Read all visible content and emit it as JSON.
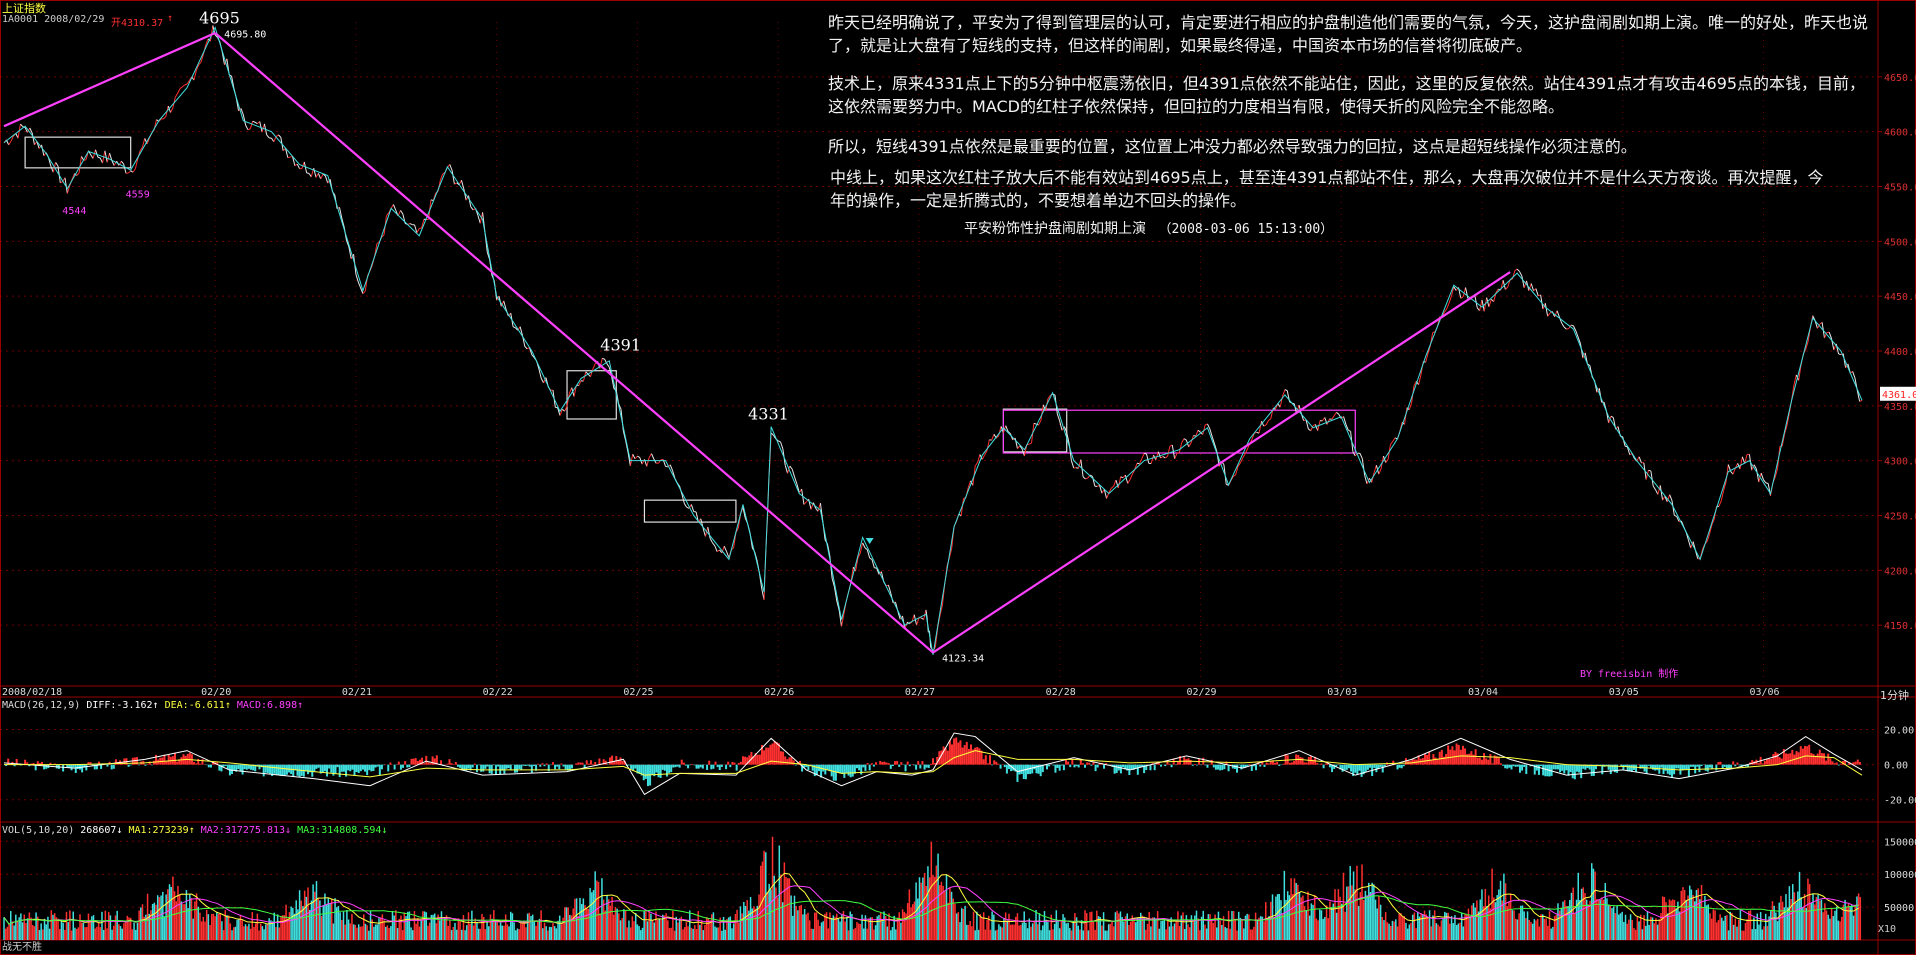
{
  "header": {
    "index_name": "上证指数",
    "code_date": "1A0001 2008/02/29",
    "open_value": "开4310.37",
    "open_arrow": "↑"
  },
  "commentary": {
    "p1": "昨天已经明确说了，平安为了得到管理层的认可，肯定要进行相应的护盘制造他们需要的气氛，今天，这护盘闹剧如期上演。唯一的好处，昨天也说了，就是让大盘有了短线的支持，但这样的闹剧，如果最终得逞，中国资本市场的信誉将彻底破产。",
    "p2": "技术上，原来4331点上下的5分钟中枢震荡依旧，但4391点依然不能站住，因此，这里的反复依然。站住4391点才有攻击4695点的本钱，目前，这依然需要努力中。MACD的红柱子依然保持，但回拉的力度相当有限，使得夭折的风险完全不能忽略。",
    "p3": "所以，短线4391点依然是最重要的位置，这位置上冲没力都必然导致强力的回拉，这点是超短线操作必须注意的。",
    "p4": "中线上，如果这次红柱子放大后不能有效站到4695点上，甚至连4391点都站不住，那么，大盘再次破位并不是什么天方夜谈。再次提醒，今年的操作，一定是折腾式的，不要想着单边不回头的操作。",
    "title": "平安粉饰性护盘闹剧如期上演",
    "timestamp": "（2008-03-06 15:13:00）"
  },
  "watermark": "BY freeisbin 制作",
  "footer": {
    "left": "战无不胜",
    "right": "X10"
  },
  "period": "1分钟",
  "colors": {
    "up": "#ff3030",
    "down": "#40e0e0",
    "magenta": "#ff40ff",
    "yellow": "#ffff40",
    "grid": "#6e0000",
    "axis": "#9a0000",
    "green": "#40ff40"
  },
  "chart_data": [
    {
      "type": "line",
      "name": "price",
      "ylim": [
        4100,
        4700
      ],
      "yticks": [
        4150,
        4200,
        4250,
        4300,
        4350,
        4400,
        4450,
        4500,
        4550,
        4600,
        4650
      ],
      "ytick_labels": [
        "4150.00",
        "4200.00",
        "4250.00",
        "4300.00",
        "4350.00",
        "4400.00",
        "4450.00",
        "4500.00",
        "4550.00",
        "4600.00",
        "4650.00"
      ],
      "xlim": [
        0,
        13.2
      ],
      "date_labels": [
        {
          "x": 0.0,
          "label": "2008/02/18"
        },
        {
          "x": 1.5,
          "label": "02/20"
        },
        {
          "x": 2.5,
          "label": "02/21"
        },
        {
          "x": 3.5,
          "label": "02/22"
        },
        {
          "x": 4.5,
          "label": "02/25"
        },
        {
          "x": 5.5,
          "label": "02/26"
        },
        {
          "x": 6.5,
          "label": "02/27"
        },
        {
          "x": 7.5,
          "label": "02/28"
        },
        {
          "x": 8.5,
          "label": "02/29"
        },
        {
          "x": 9.5,
          "label": "03/03"
        },
        {
          "x": 10.5,
          "label": "03/04"
        },
        {
          "x": 11.5,
          "label": "03/05"
        },
        {
          "x": 12.5,
          "label": "03/06"
        }
      ],
      "series": [
        {
          "points": [
            [
              0,
              4590
            ],
            [
              0.15,
              4605
            ],
            [
              0.3,
              4580
            ],
            [
              0.45,
              4548
            ],
            [
              0.6,
              4582
            ],
            [
              0.75,
              4575
            ],
            [
              0.9,
              4565
            ],
            [
              1.1,
              4610
            ],
            [
              1.3,
              4640
            ],
            [
              1.5,
              4695
            ],
            [
              1.7,
              4610
            ],
            [
              1.9,
              4600
            ],
            [
              2.1,
              4570
            ],
            [
              2.3,
              4560
            ],
            [
              2.55,
              4455
            ],
            [
              2.75,
              4530
            ],
            [
              2.95,
              4505
            ],
            [
              3.15,
              4568
            ],
            [
              3.4,
              4520
            ],
            [
              3.5,
              4450
            ],
            [
              3.75,
              4400
            ],
            [
              3.95,
              4345
            ],
            [
              4.1,
              4375
            ],
            [
              4.3,
              4391
            ],
            [
              4.45,
              4300
            ],
            [
              4.7,
              4300
            ],
            [
              4.9,
              4250
            ],
            [
              5.15,
              4210
            ],
            [
              5.25,
              4260
            ],
            [
              5.4,
              4180
            ],
            [
              5.45,
              4331
            ],
            [
              5.65,
              4270
            ],
            [
              5.8,
              4255
            ],
            [
              5.95,
              4155
            ],
            [
              6.1,
              4230
            ],
            [
              6.25,
              4190
            ],
            [
              6.4,
              4150
            ],
            [
              6.55,
              4160
            ],
            [
              6.6,
              4123
            ],
            [
              6.75,
              4240
            ],
            [
              6.95,
              4305
            ],
            [
              7.1,
              4330
            ],
            [
              7.25,
              4310
            ],
            [
              7.45,
              4362
            ],
            [
              7.6,
              4300
            ],
            [
              7.85,
              4270
            ],
            [
              8.1,
              4300
            ],
            [
              8.35,
              4310
            ],
            [
              8.55,
              4330
            ],
            [
              8.7,
              4278
            ],
            [
              8.85,
              4320
            ],
            [
              9.1,
              4360
            ],
            [
              9.3,
              4330
            ],
            [
              9.5,
              4340
            ],
            [
              9.7,
              4280
            ],
            [
              9.9,
              4320
            ],
            [
              10.1,
              4395
            ],
            [
              10.3,
              4460
            ],
            [
              10.5,
              4440
            ],
            [
              10.75,
              4471
            ],
            [
              10.95,
              4440
            ],
            [
              11.15,
              4420
            ],
            [
              11.4,
              4340
            ],
            [
              11.6,
              4300
            ],
            [
              11.85,
              4260
            ],
            [
              12.05,
              4210
            ],
            [
              12.25,
              4290
            ],
            [
              12.4,
              4300
            ],
            [
              12.55,
              4270
            ],
            [
              12.7,
              4355
            ],
            [
              12.85,
              4430
            ],
            [
              13.05,
              4400
            ],
            [
              13.2,
              4355
            ]
          ]
        }
      ],
      "trend_lines": [
        {
          "from": [
            0,
            4605
          ],
          "to": [
            1.5,
            4690
          ]
        },
        {
          "from": [
            1.5,
            4690
          ],
          "to": [
            6.6,
            4125
          ]
        },
        {
          "from": [
            6.6,
            4125
          ],
          "to": [
            10.7,
            4472
          ]
        }
      ],
      "boxes": [
        {
          "x0": 0.15,
          "x1": 0.9,
          "y0": 4567,
          "y1": 4595,
          "color": "white"
        },
        {
          "x0": 4.0,
          "x1": 4.35,
          "y0": 4338,
          "y1": 4382,
          "color": "white"
        },
        {
          "x0": 4.55,
          "x1": 5.2,
          "y0": 4244,
          "y1": 4264,
          "color": "white"
        },
        {
          "x0": 7.1,
          "x1": 7.55,
          "y0": 4308,
          "y1": 4347,
          "color": "white"
        },
        {
          "x0": 7.1,
          "x1": 9.6,
          "y0": 4307,
          "y1": 4346,
          "color": "magenta"
        }
      ],
      "annotations": [
        {
          "text": "4695",
          "x": 1.5,
          "y": 4695,
          "color": "white",
          "big": true
        },
        {
          "text": "4695.80",
          "x": 1.55,
          "y": 4686,
          "color": "white",
          "big": false
        },
        {
          "text": "4544",
          "x": 0.4,
          "y": 4525,
          "color": "magenta",
          "big": false
        },
        {
          "text": "4559",
          "x": 0.85,
          "y": 4540,
          "color": "magenta",
          "big": false
        },
        {
          "text": "4391",
          "x": 4.35,
          "y": 4397,
          "color": "white",
          "big": true
        },
        {
          "text": "4331",
          "x": 5.4,
          "y": 4334,
          "color": "white",
          "big": true
        },
        {
          "text": "4123.34",
          "x": 6.65,
          "y": 4117,
          "color": "white",
          "big": false
        }
      ],
      "current_price": "4361.0",
      "current_value": 4361
    },
    {
      "type": "bar",
      "name": "MACD",
      "label": "MACD(26,12,9)",
      "diff_label": "DIFF:-3.162",
      "dea_label": "DEA:-6.611",
      "macd_label": "MACD:6.898",
      "ylim": [
        -27,
        30
      ],
      "yticks": [
        -20,
        0,
        20
      ],
      "ytick_labels": [
        "-20.00",
        "0.00",
        "20.00"
      ],
      "diff": [
        [
          0,
          1
        ],
        [
          0.5,
          -2
        ],
        [
          1.0,
          3
        ],
        [
          1.3,
          8
        ],
        [
          1.6,
          -3
        ],
        [
          2.2,
          -8
        ],
        [
          2.6,
          -12
        ],
        [
          3.0,
          2
        ],
        [
          3.4,
          -6
        ],
        [
          4.0,
          -4
        ],
        [
          4.4,
          3
        ],
        [
          4.55,
          -17
        ],
        [
          4.8,
          -5
        ],
        [
          5.2,
          -6
        ],
        [
          5.45,
          15
        ],
        [
          5.7,
          -3
        ],
        [
          5.95,
          -12
        ],
        [
          6.2,
          -4
        ],
        [
          6.45,
          -6
        ],
        [
          6.6,
          -3
        ],
        [
          6.75,
          18
        ],
        [
          6.9,
          16
        ],
        [
          7.2,
          -4
        ],
        [
          7.6,
          4
        ],
        [
          8.0,
          -3
        ],
        [
          8.4,
          5
        ],
        [
          8.8,
          -2
        ],
        [
          9.2,
          8
        ],
        [
          9.6,
          -6
        ],
        [
          10.0,
          3
        ],
        [
          10.35,
          15
        ],
        [
          10.7,
          3
        ],
        [
          11.1,
          -6
        ],
        [
          11.5,
          -3
        ],
        [
          11.9,
          -8
        ],
        [
          12.3,
          -2
        ],
        [
          12.6,
          5
        ],
        [
          12.8,
          16
        ],
        [
          13.0,
          6
        ],
        [
          13.2,
          -3
        ]
      ],
      "dea": [
        [
          0,
          0
        ],
        [
          0.5,
          0
        ],
        [
          1.0,
          1
        ],
        [
          1.3,
          3
        ],
        [
          1.6,
          1
        ],
        [
          2.2,
          -4
        ],
        [
          2.6,
          -7
        ],
        [
          3.0,
          -2
        ],
        [
          3.4,
          -3
        ],
        [
          4.0,
          -3
        ],
        [
          4.4,
          -1
        ],
        [
          4.55,
          -6
        ],
        [
          4.8,
          -5
        ],
        [
          5.2,
          -5
        ],
        [
          5.45,
          2
        ],
        [
          5.7,
          0
        ],
        [
          5.95,
          -5
        ],
        [
          6.2,
          -4
        ],
        [
          6.45,
          -5
        ],
        [
          6.6,
          -4
        ],
        [
          6.75,
          4
        ],
        [
          6.9,
          8
        ],
        [
          7.2,
          3
        ],
        [
          7.6,
          3
        ],
        [
          8.0,
          1
        ],
        [
          8.4,
          2
        ],
        [
          8.8,
          1
        ],
        [
          9.2,
          3
        ],
        [
          9.6,
          0
        ],
        [
          10.0,
          1
        ],
        [
          10.35,
          5
        ],
        [
          10.7,
          4
        ],
        [
          11.1,
          0
        ],
        [
          11.5,
          -1
        ],
        [
          11.9,
          -3
        ],
        [
          12.3,
          -2
        ],
        [
          12.6,
          0
        ],
        [
          12.8,
          5
        ],
        [
          13.0,
          4
        ],
        [
          13.2,
          -6
        ]
      ]
    },
    {
      "type": "bar",
      "name": "VOL",
      "label": "VOL(5,10,20)",
      "vol_label": "268607",
      "ma1_label": "MA1:273239",
      "ma2_label": "MA2:317275.813",
      "ma3_label": "MA3:314808.594",
      "ylim": [
        0,
        155000
      ],
      "yticks": [
        50000,
        100000,
        150000
      ],
      "ytick_labels": [
        "50000",
        "100000",
        "150000"
      ],
      "base": 35000,
      "spikes": [
        [
          1.2,
          90000
        ],
        [
          2.2,
          60000
        ],
        [
          4.2,
          70000
        ],
        [
          5.45,
          140000
        ],
        [
          6.6,
          120000
        ],
        [
          9.15,
          80000
        ],
        [
          9.6,
          110000
        ],
        [
          10.6,
          85000
        ],
        [
          11.25,
          100000
        ],
        [
          11.95,
          75000
        ],
        [
          12.75,
          80000
        ],
        [
          13.2,
          55000
        ]
      ]
    }
  ]
}
